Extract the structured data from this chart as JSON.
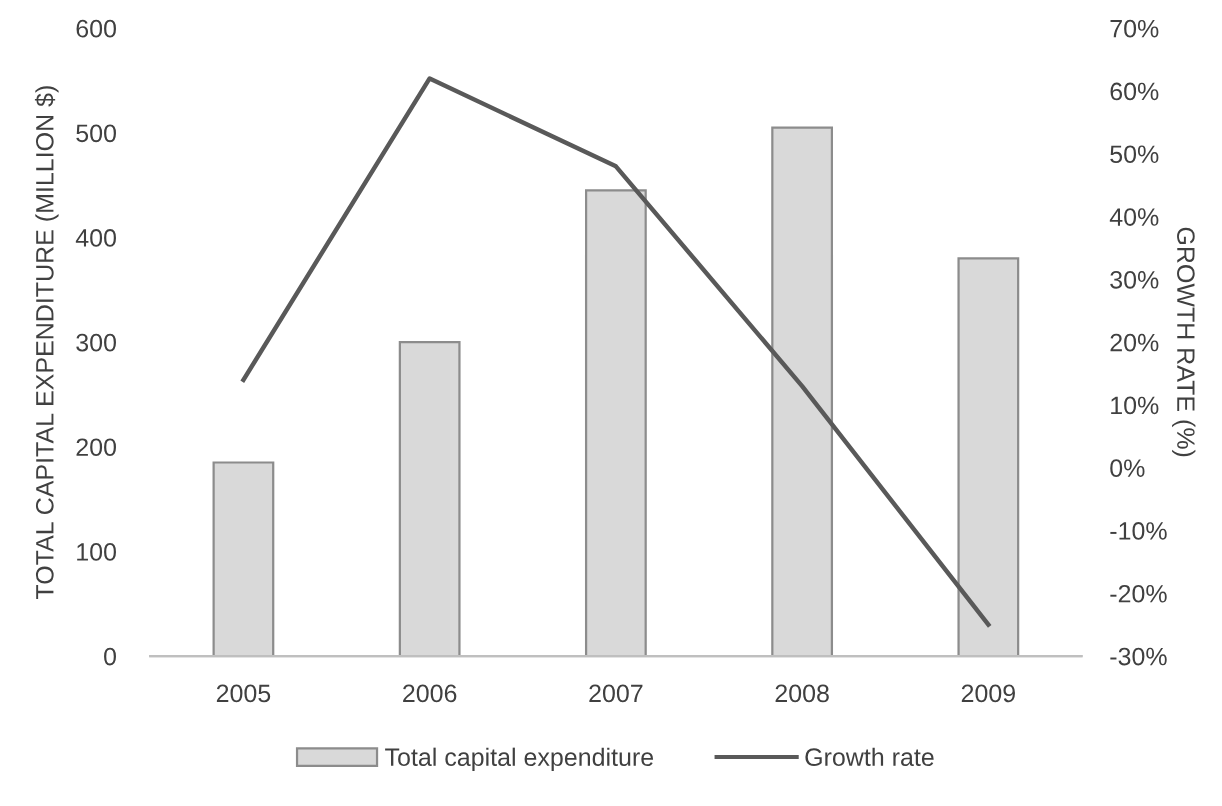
{
  "chart_data": {
    "type": "bar",
    "categories": [
      "2005",
      "2006",
      "2007",
      "2008",
      "2009"
    ],
    "ylabel": "TOTAL CAPITAL EXPENDITURE (MILLION $)",
    "y2label": "GROWTH RATE (%)",
    "series": [
      {
        "name": "Total capital expenditure",
        "color": "#d9d9d9",
        "values": [
          185,
          300,
          445,
          505,
          380
        ]
      },
      {
        "name": "Growth rate",
        "type": "line",
        "axis": "y2",
        "color": "#595959",
        "values": [
          14,
          62,
          48,
          13,
          -25
        ]
      }
    ],
    "ylim": [
      0,
      600
    ],
    "yticks": [
      0,
      100,
      200,
      300,
      400,
      500,
      600
    ],
    "y2lim": [
      -30,
      70
    ],
    "y2ticks": [
      {
        "value": -30,
        "label": "-30%"
      },
      {
        "value": -20,
        "label": "-20%"
      },
      {
        "value": -10,
        "label": "-10%"
      },
      {
        "value": 0,
        "label": "0%"
      },
      {
        "value": 10,
        "label": "10%"
      },
      {
        "value": 20,
        "label": "20%"
      },
      {
        "value": 30,
        "label": "30%"
      },
      {
        "value": 40,
        "label": "40%"
      },
      {
        "value": 50,
        "label": "50%"
      },
      {
        "value": 60,
        "label": "60%"
      },
      {
        "value": 70,
        "label": "70%"
      }
    ],
    "legend": "bottom",
    "marker": "none",
    "line_style": "solid"
  }
}
